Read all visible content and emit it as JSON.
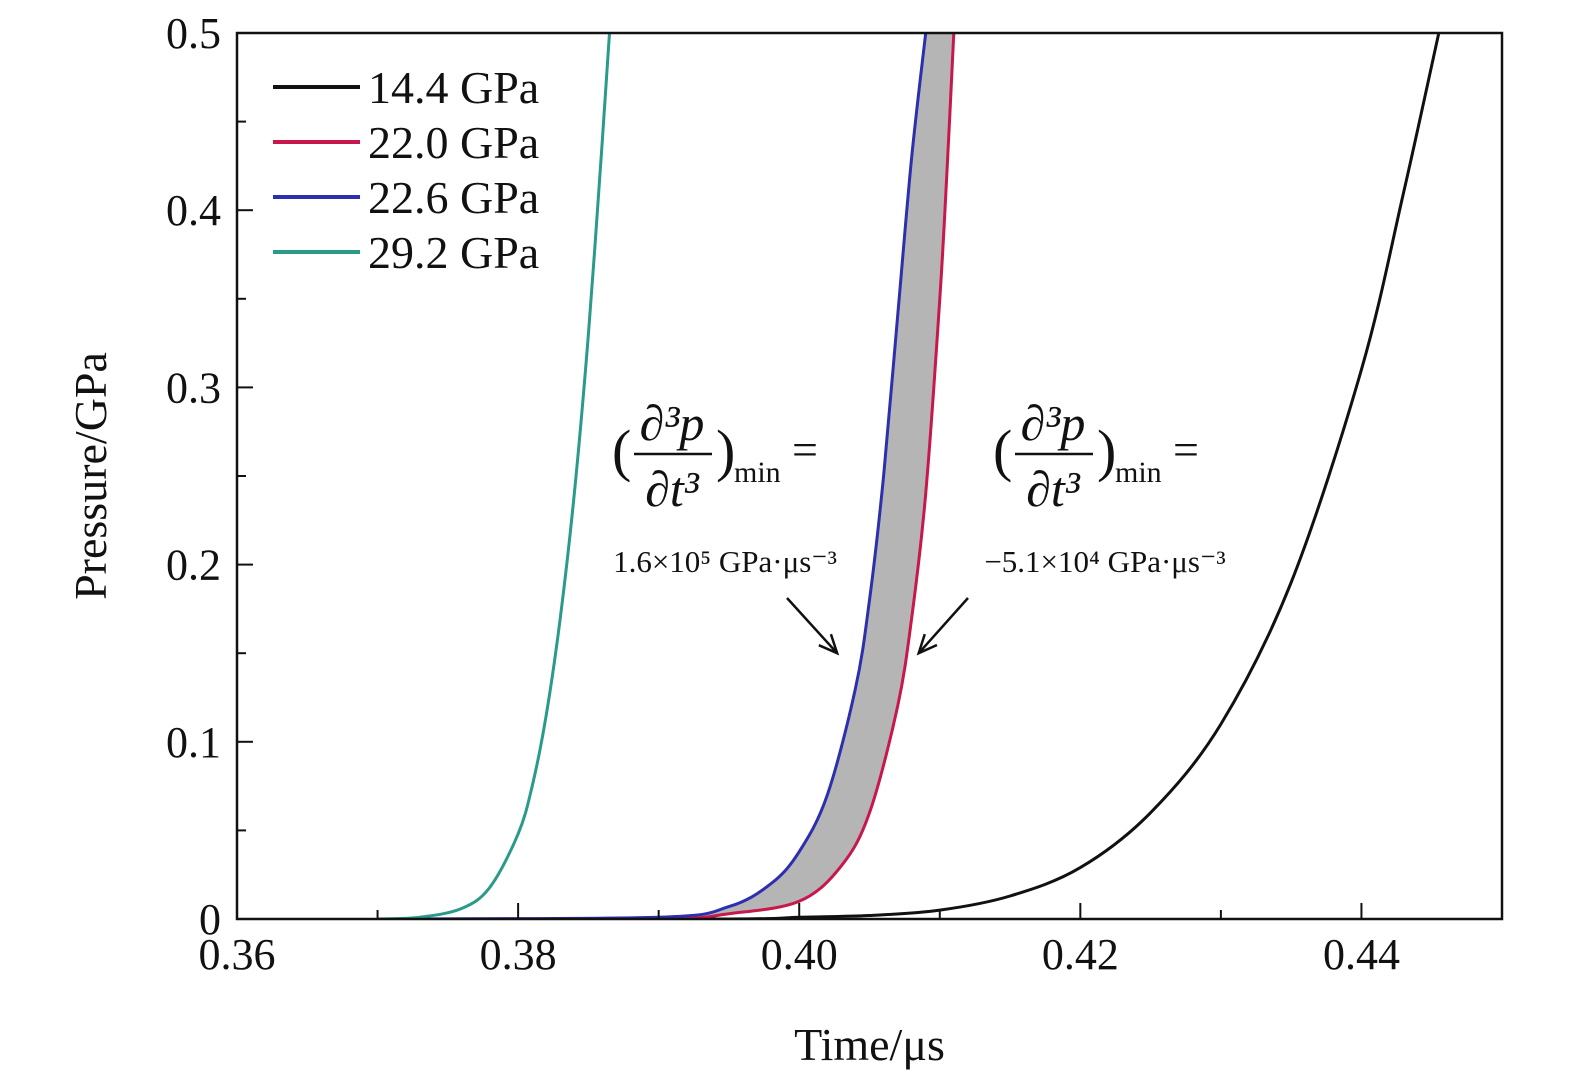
{
  "chart_data": {
    "type": "line",
    "xlabel": "Time/μs",
    "ylabel": "Pressure/GPa",
    "xlim": [
      0.36,
      0.45
    ],
    "ylim": [
      0,
      0.5
    ],
    "x_ticks": [
      "0.36",
      "0.38",
      "0.40",
      "0.42",
      "0.44"
    ],
    "y_ticks": [
      "0",
      "0.1",
      "0.2",
      "0.3",
      "0.4",
      "0.5"
    ],
    "legend_position": "top-left",
    "grid": false,
    "series": [
      {
        "name": "14.4 GPa",
        "color": "#111111",
        "x": [
          0.37,
          0.395,
          0.4,
          0.405,
          0.41,
          0.415,
          0.42,
          0.425,
          0.43,
          0.435,
          0.44,
          0.443,
          0.4455
        ],
        "y": [
          0,
          0,
          0.001,
          0.002,
          0.005,
          0.013,
          0.029,
          0.06,
          0.11,
          0.19,
          0.31,
          0.41,
          0.5
        ]
      },
      {
        "name": "22.0 GPa",
        "color": "#c8174a",
        "x": [
          0.37,
          0.39,
          0.395,
          0.4,
          0.403,
          0.405,
          0.407,
          0.408,
          0.409,
          0.41,
          0.4105,
          0.411
        ],
        "y": [
          0,
          0,
          0.003,
          0.01,
          0.03,
          0.06,
          0.12,
          0.17,
          0.24,
          0.35,
          0.42,
          0.5
        ]
      },
      {
        "name": "22.6 GPa",
        "color": "#2b2fb0",
        "x": [
          0.37,
          0.39,
          0.395,
          0.398,
          0.4,
          0.402,
          0.404,
          0.405,
          0.406,
          0.407,
          0.408,
          0.409
        ],
        "y": [
          0,
          0.001,
          0.007,
          0.02,
          0.038,
          0.07,
          0.13,
          0.18,
          0.25,
          0.34,
          0.43,
          0.5
        ]
      },
      {
        "name": "29.2 GPa",
        "color": "#2a9a8a",
        "x": [
          0.37,
          0.373,
          0.376,
          0.378,
          0.38,
          0.381,
          0.382,
          0.383,
          0.384,
          0.385,
          0.386,
          0.3865
        ],
        "y": [
          0,
          0.001,
          0.006,
          0.018,
          0.048,
          0.075,
          0.115,
          0.17,
          0.24,
          0.33,
          0.44,
          0.5
        ]
      }
    ],
    "annotations": [
      {
        "formula_paren_open": "(",
        "formula_numerator": "∂³p",
        "formula_denominator": "∂t³",
        "formula_paren_close": ")",
        "formula_subscript": "min",
        "formula_equals": "=",
        "value_text": "1.6×10⁵ GPa·μs⁻³",
        "arrow_target": {
          "x": 0.4027,
          "y": 0.15
        }
      },
      {
        "formula_paren_open": "(",
        "formula_numerator": "∂³p",
        "formula_denominator": "∂t³",
        "formula_paren_close": ")",
        "formula_subscript": "min",
        "formula_equals": "=",
        "value_text": "−5.1×10⁴ GPa·μs⁻³",
        "arrow_target": {
          "x": 0.4085,
          "y": 0.15
        }
      }
    ],
    "shaded_region": {
      "between": [
        "22.6 GPa",
        "22.0 GPa"
      ],
      "color": "#b5b5b5"
    }
  }
}
